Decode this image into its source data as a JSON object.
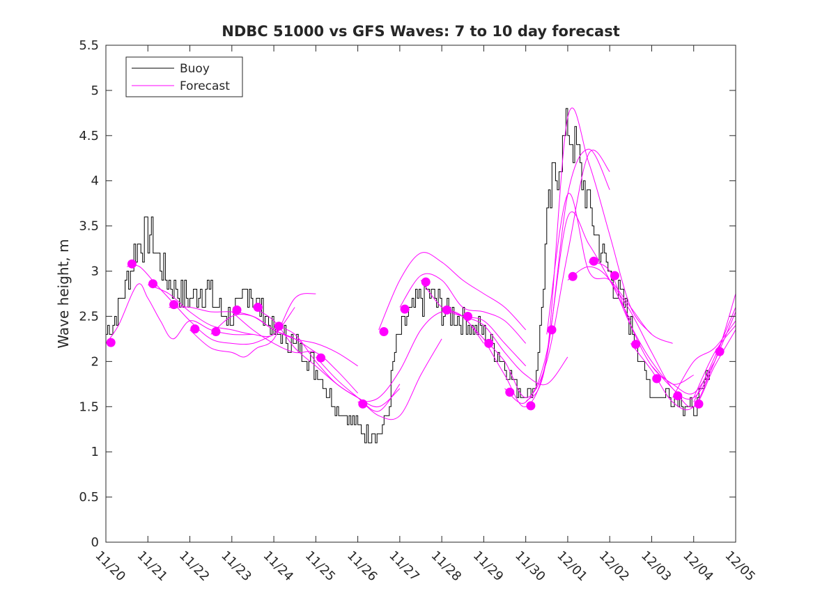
{
  "chart_data": {
    "type": "line",
    "title": "NDBC 51000 vs GFS Waves: 7 to 10 day forecast",
    "xlabel": "",
    "ylabel": "Wave height, m",
    "ylim": [
      0,
      5.5
    ],
    "xlim": [
      0,
      15
    ],
    "yticks": [
      0,
      0.5,
      1,
      1.5,
      2,
      2.5,
      3,
      3.5,
      4,
      4.5,
      5,
      5.5
    ],
    "ytick_labels": [
      "0",
      "0.5",
      "1",
      "1.5",
      "2",
      "2.5",
      "3",
      "3.5",
      "4",
      "4.5",
      "5",
      "5.5"
    ],
    "xticks": [
      0,
      1,
      2,
      3,
      4,
      5,
      6,
      7,
      8,
      9,
      10,
      11,
      12,
      13,
      14,
      15
    ],
    "xtick_labels": [
      "11/20",
      "11/21",
      "11/22",
      "11/23",
      "11/24",
      "11/25",
      "11/26",
      "11/27",
      "11/28",
      "11/29",
      "11/30",
      "12/01",
      "12/02",
      "12/03",
      "12/04",
      "12/05"
    ],
    "legend": {
      "placement": "top-left",
      "entries": [
        {
          "name": "Buoy",
          "color": "#000000"
        },
        {
          "name": "Forecast",
          "color": "#ff00ff"
        }
      ]
    },
    "colors": {
      "buoy": "#000000",
      "forecast": "#ff00ff",
      "markers": "#ff00ff"
    },
    "buoy_anchors": {
      "x": [
        0,
        0.15,
        0.3,
        0.5,
        0.7,
        0.9,
        1.03,
        1.2,
        1.4,
        1.6,
        1.8,
        2.0,
        2.2,
        2.4,
        2.6,
        2.8,
        3.0,
        3.2,
        3.4,
        3.6,
        3.8,
        4.0,
        4.2,
        4.4,
        4.6,
        4.8,
        5.0,
        5.2,
        5.4,
        5.6,
        5.8,
        6.0,
        6.2,
        6.4,
        6.6,
        6.7,
        6.8,
        6.9,
        7.0,
        7.2,
        7.4,
        7.6,
        7.8,
        8.0,
        8.2,
        8.4,
        8.6,
        8.8,
        9.0,
        9.2,
        9.4,
        9.6,
        9.8,
        10.0,
        10.2,
        10.35,
        10.5,
        10.65,
        10.8,
        11.0,
        11.2,
        11.4,
        11.6,
        11.8,
        12.0,
        12.2,
        12.4,
        12.6,
        12.8,
        13.0,
        13.2,
        13.4,
        13.6,
        13.8,
        14.0,
        14.2,
        14.4
      ],
      "y": [
        2.3,
        2.45,
        2.6,
        2.9,
        3.25,
        3.35,
        3.45,
        3.2,
        2.95,
        2.85,
        2.75,
        2.7,
        2.75,
        2.85,
        2.6,
        2.55,
        2.5,
        2.6,
        2.85,
        2.6,
        2.5,
        2.35,
        2.25,
        2.2,
        2.15,
        2.05,
        1.9,
        1.75,
        1.55,
        1.45,
        1.35,
        1.25,
        1.22,
        1.22,
        1.25,
        1.4,
        1.8,
        2.2,
        2.35,
        2.5,
        2.6,
        2.75,
        2.7,
        2.6,
        2.55,
        2.5,
        2.45,
        2.35,
        2.3,
        2.2,
        2.0,
        1.85,
        1.7,
        1.65,
        1.7,
        2.4,
        3.5,
        4.0,
        4.25,
        4.6,
        4.3,
        3.9,
        3.5,
        3.2,
        2.95,
        2.75,
        2.5,
        2.3,
        1.9,
        1.65,
        1.6,
        1.65,
        1.6,
        1.5,
        1.45,
        1.65,
        2.0
      ]
    },
    "forecast_runs": [
      {
        "x": [
          0,
          0.3,
          0.75,
          1.0,
          1.3,
          1.6,
          2.0,
          2.5,
          3.0,
          3.5
        ],
        "y": [
          2.2,
          2.4,
          2.85,
          2.7,
          2.45,
          2.25,
          2.45,
          2.35,
          2.3,
          2.3
        ]
      },
      {
        "x": [
          0.5,
          0.8,
          1.2,
          1.6,
          2.0,
          2.5,
          3.0,
          3.5,
          4.0
        ],
        "y": [
          3.05,
          3.05,
          2.85,
          2.65,
          2.45,
          2.25,
          2.2,
          2.2,
          2.3
        ]
      },
      {
        "x": [
          1.0,
          1.5,
          2.0,
          2.5,
          3.0,
          3.5,
          4.0,
          4.5
        ],
        "y": [
          2.85,
          2.75,
          2.55,
          2.4,
          2.35,
          2.3,
          2.3,
          2.6
        ]
      },
      {
        "x": [
          1.5,
          2.0,
          2.5,
          3.0,
          3.5,
          4.0,
          4.5,
          5.0
        ],
        "y": [
          2.6,
          2.6,
          2.55,
          2.55,
          2.5,
          2.35,
          2.25,
          2.1
        ]
      },
      {
        "x": [
          2.0,
          2.5,
          3.0,
          3.3,
          3.6,
          4.0,
          4.5,
          5.0
        ],
        "y": [
          2.35,
          2.15,
          2.1,
          2.05,
          2.15,
          2.25,
          2.7,
          2.75
        ]
      },
      {
        "x": [
          2.5,
          3.0,
          3.5,
          4.0,
          4.5,
          5.0,
          5.5,
          6.0
        ],
        "y": [
          2.3,
          2.5,
          2.5,
          2.35,
          2.25,
          2.2,
          2.1,
          1.95
        ]
      },
      {
        "x": [
          3.0,
          3.5,
          4.0,
          4.5,
          5.0,
          5.5,
          6.0
        ],
        "y": [
          2.55,
          2.35,
          2.2,
          2.1,
          2.1,
          1.9,
          1.65
        ]
      },
      {
        "x": [
          3.5,
          4.0,
          4.5,
          5.0,
          5.5,
          6.0,
          6.5,
          7.0
        ],
        "y": [
          2.6,
          2.45,
          2.15,
          1.95,
          1.75,
          1.6,
          1.5,
          1.7
        ]
      },
      {
        "x": [
          4.0,
          4.5,
          5.0,
          5.5,
          6.0,
          6.5,
          7.0
        ],
        "y": [
          2.4,
          2.3,
          2.0,
          1.75,
          1.6,
          1.45,
          1.75
        ]
      },
      {
        "x": [
          5.0,
          5.5,
          6.0,
          6.5,
          7.0,
          7.5,
          8.0
        ],
        "y": [
          2.05,
          1.8,
          1.6,
          1.4,
          1.4,
          1.85,
          2.25
        ]
      },
      {
        "x": [
          6.0,
          6.5,
          7.0,
          7.5,
          8.0,
          8.5,
          9.0
        ],
        "y": [
          1.55,
          1.6,
          1.9,
          2.35,
          2.55,
          2.5,
          2.2
        ]
      },
      {
        "x": [
          6.5,
          7.0,
          7.5,
          8.0,
          8.5,
          9.0,
          9.5,
          10.0
        ],
        "y": [
          2.35,
          2.9,
          3.2,
          3.1,
          2.9,
          2.75,
          2.6,
          2.35
        ]
      },
      {
        "x": [
          7.0,
          7.5,
          8.0,
          8.5,
          9.0,
          9.5,
          10.0
        ],
        "y": [
          2.6,
          2.95,
          2.9,
          2.6,
          2.55,
          2.45,
          2.2
        ]
      },
      {
        "x": [
          7.5,
          8.0,
          8.5,
          9.0,
          9.5,
          10.0
        ],
        "y": [
          2.9,
          2.6,
          2.5,
          2.45,
          2.2,
          1.95
        ]
      },
      {
        "x": [
          8.0,
          8.5,
          9.0,
          9.5,
          10.0,
          10.5,
          11.0
        ],
        "y": [
          2.6,
          2.5,
          2.4,
          2.1,
          1.85,
          1.75,
          2.05
        ]
      },
      {
        "x": [
          8.5,
          9.0,
          9.5,
          10.0,
          10.5,
          11.0,
          11.5,
          12.0
        ],
        "y": [
          2.5,
          2.25,
          2.0,
          1.6,
          2.0,
          3.2,
          4.3,
          4.1
        ]
      },
      {
        "x": [
          9.0,
          9.5,
          10.0,
          10.5,
          11.0,
          11.5,
          12.0
        ],
        "y": [
          2.25,
          1.85,
          1.5,
          2.05,
          3.85,
          4.35,
          3.9
        ]
      },
      {
        "x": [
          9.5,
          10.0,
          10.5,
          11.0,
          11.5,
          12.0,
          12.5
        ],
        "y": [
          1.7,
          1.55,
          2.1,
          3.6,
          3.3,
          2.9,
          2.45
        ]
      },
      {
        "x": [
          10.0,
          10.5,
          11.0,
          11.5,
          12.0,
          12.5,
          13.0
        ],
        "y": [
          1.55,
          2.05,
          4.7,
          4.2,
          3.4,
          2.6,
          2.3
        ]
      },
      {
        "x": [
          10.5,
          11.0,
          11.5,
          12.0,
          12.5,
          13.0,
          13.5
        ],
        "y": [
          2.3,
          3.85,
          3.0,
          2.9,
          2.6,
          2.3,
          2.2
        ]
      },
      {
        "x": [
          11.0,
          11.5,
          12.0,
          12.5,
          13.0,
          13.5,
          14.0
        ],
        "y": [
          2.9,
          3.05,
          2.9,
          2.4,
          2.0,
          1.75,
          1.85
        ]
      },
      {
        "x": [
          11.5,
          12.0,
          12.5,
          13.0,
          13.5,
          14.0,
          14.5
        ],
        "y": [
          3.1,
          3.0,
          2.4,
          1.95,
          1.75,
          1.65,
          2.0
        ]
      },
      {
        "x": [
          12.0,
          12.5,
          13.0,
          13.5,
          14.0,
          14.5,
          15.0
        ],
        "y": [
          2.9,
          2.55,
          2.1,
          1.7,
          1.6,
          2.0,
          2.75
        ]
      },
      {
        "x": [
          12.5,
          13.0,
          13.5,
          14.0,
          14.5,
          15.0
        ],
        "y": [
          2.2,
          1.9,
          1.55,
          1.5,
          2.0,
          2.55
        ]
      },
      {
        "x": [
          13.0,
          13.5,
          14.0,
          14.5,
          15.0
        ],
        "y": [
          1.95,
          1.7,
          1.5,
          1.95,
          2.35
        ]
      },
      {
        "x": [
          13.5,
          14.0,
          14.5,
          15.0
        ],
        "y": [
          1.6,
          2.0,
          2.15,
          2.45
        ]
      },
      {
        "x": [
          14.0,
          14.5,
          15.0
        ],
        "y": [
          1.55,
          2.05,
          2.6
        ]
      },
      {
        "x": [
          14.0,
          14.5,
          15.0
        ],
        "y": [
          1.6,
          2.1,
          2.4
        ]
      }
    ],
    "forecast_points": {
      "x": [
        0.12,
        0.62,
        1.12,
        1.62,
        2.12,
        2.62,
        3.12,
        3.62,
        4.12,
        5.12,
        6.12,
        6.62,
        7.12,
        7.62,
        8.12,
        8.62,
        9.12,
        9.62,
        10.12,
        10.62,
        11.12,
        11.62,
        12.12,
        12.62,
        13.12,
        13.62,
        14.12,
        14.62
      ],
      "y": [
        2.21,
        3.08,
        2.86,
        2.63,
        2.36,
        2.33,
        2.57,
        2.6,
        2.39,
        2.04,
        1.53,
        2.33,
        2.58,
        2.88,
        2.57,
        2.5,
        2.2,
        1.66,
        1.51,
        2.35,
        2.94,
        3.11,
        2.95,
        2.19,
        1.81,
        1.62,
        1.53,
        2.11
      ]
    }
  }
}
